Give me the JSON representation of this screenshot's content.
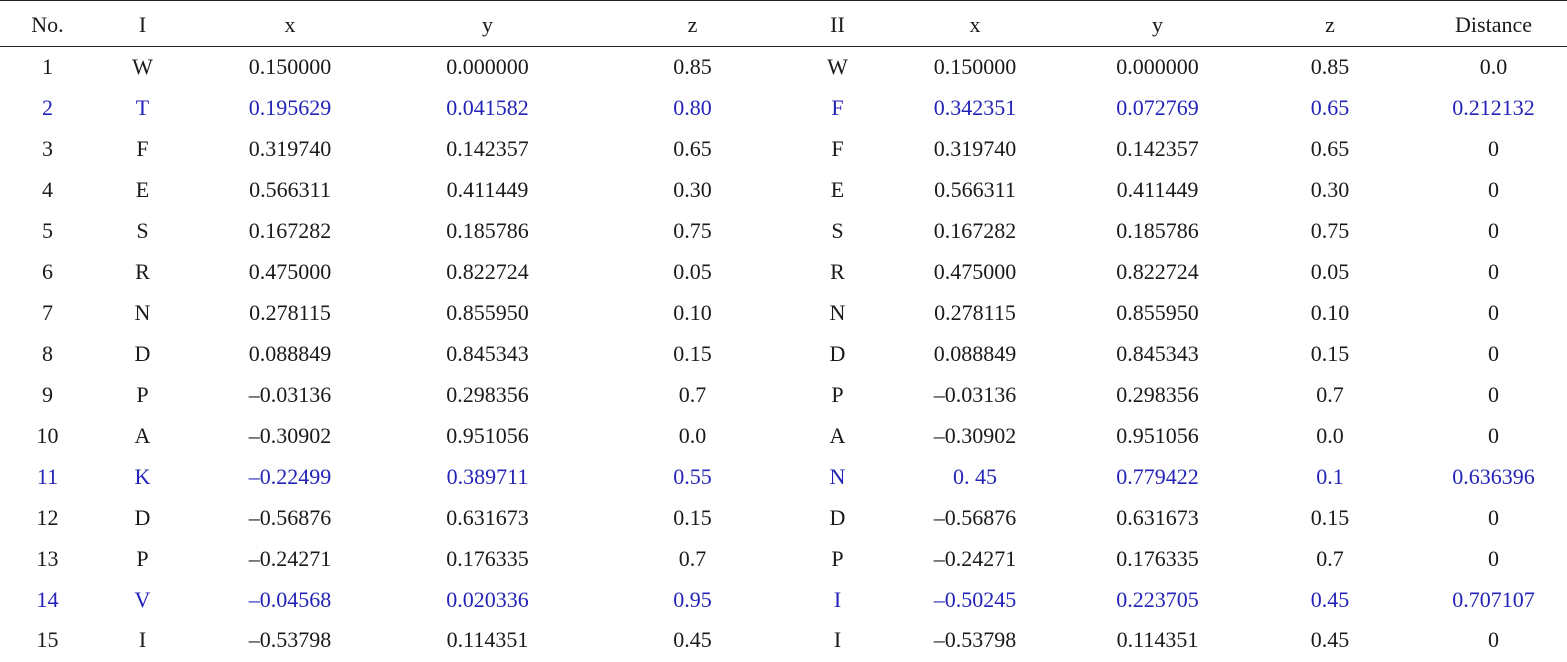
{
  "table": {
    "headers": [
      "No.",
      "I",
      "x",
      "y",
      "z",
      "II",
      "x",
      "y",
      "z",
      "Distance"
    ],
    "highlight_color": "#2323b8",
    "rows": [
      {
        "cells": [
          "1",
          "W",
          "0.150000",
          "0.000000",
          "0.85",
          "W",
          "0.150000",
          "0.000000",
          "0.85",
          "0.0"
        ],
        "highlighted": false
      },
      {
        "cells": [
          "2",
          "T",
          "0.195629",
          "0.041582",
          "0.80",
          "F",
          "0.342351",
          "0.072769",
          "0.65",
          "0.212132"
        ],
        "highlighted": true
      },
      {
        "cells": [
          "3",
          "F",
          "0.319740",
          "0.142357",
          "0.65",
          "F",
          "0.319740",
          "0.142357",
          "0.65",
          "0"
        ],
        "highlighted": false
      },
      {
        "cells": [
          "4",
          "E",
          "0.566311",
          "0.411449",
          "0.30",
          "E",
          "0.566311",
          "0.411449",
          "0.30",
          "0"
        ],
        "highlighted": false
      },
      {
        "cells": [
          "5",
          "S",
          "0.167282",
          "0.185786",
          "0.75",
          "S",
          "0.167282",
          "0.185786",
          "0.75",
          "0"
        ],
        "highlighted": false
      },
      {
        "cells": [
          "6",
          "R",
          "0.475000",
          "0.822724",
          "0.05",
          "R",
          "0.475000",
          "0.822724",
          "0.05",
          "0"
        ],
        "highlighted": false
      },
      {
        "cells": [
          "7",
          "N",
          "0.278115",
          "0.855950",
          "0.10",
          "N",
          "0.278115",
          "0.855950",
          "0.10",
          "0"
        ],
        "highlighted": false
      },
      {
        "cells": [
          "8",
          "D",
          "0.088849",
          "0.845343",
          "0.15",
          "D",
          "0.088849",
          "0.845343",
          "0.15",
          "0"
        ],
        "highlighted": false
      },
      {
        "cells": [
          "9",
          "P",
          "–0.03136",
          "0.298356",
          "0.7",
          "P",
          "–0.03136",
          "0.298356",
          "0.7",
          "0"
        ],
        "highlighted": false
      },
      {
        "cells": [
          "10",
          "A",
          "–0.30902",
          "0.951056",
          "0.0",
          "A",
          "–0.30902",
          "0.951056",
          "0.0",
          "0"
        ],
        "highlighted": false
      },
      {
        "cells": [
          "11",
          "K",
          "–0.22499",
          "0.389711",
          "0.55",
          "N",
          "0. 45",
          "0.779422",
          "0.1",
          "0.636396"
        ],
        "highlighted": true
      },
      {
        "cells": [
          "12",
          "D",
          "–0.56876",
          "0.631673",
          "0.15",
          "D",
          "–0.56876",
          "0.631673",
          "0.15",
          "0"
        ],
        "highlighted": false
      },
      {
        "cells": [
          "13",
          "P",
          "–0.24271",
          "0.176335",
          "0.7",
          "P",
          "–0.24271",
          "0.176335",
          "0.7",
          "0"
        ],
        "highlighted": false
      },
      {
        "cells": [
          "14",
          "V",
          "–0.04568",
          "0.020336",
          "0.95",
          "I",
          "–0.50245",
          "0.223705",
          "0.45",
          "0.707107"
        ],
        "highlighted": true
      },
      {
        "cells": [
          "15",
          "I",
          "–0.53798",
          "0.114351",
          "0.45",
          "I",
          "–0.53798",
          "0.114351",
          "0.45",
          "0"
        ],
        "highlighted": false
      }
    ]
  }
}
